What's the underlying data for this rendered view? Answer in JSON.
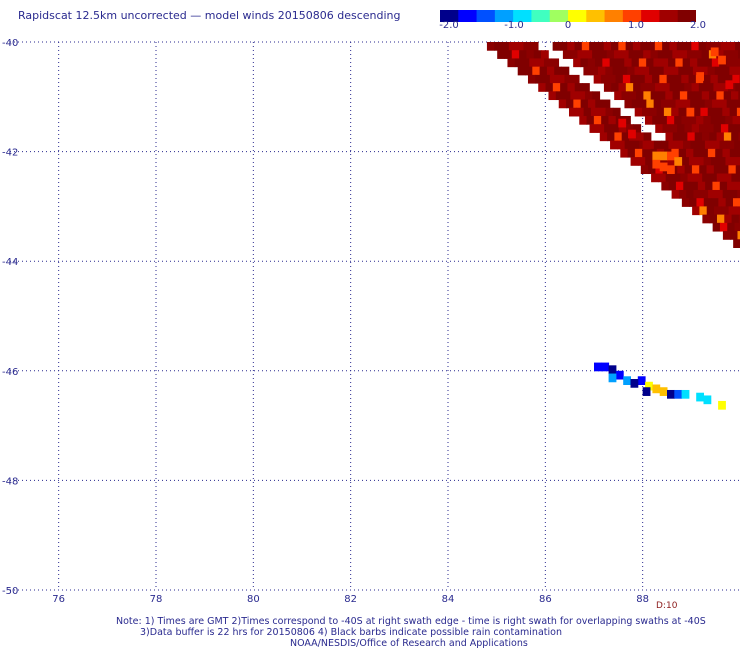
{
  "header": {
    "title": "Rapidscat 12.5km uncorrected — model winds 20150806 descending"
  },
  "colorbar": {
    "ticks": [
      "-2.0",
      "-1.0",
      "0",
      "1.0",
      "2.0"
    ],
    "colors": [
      "#00008b",
      "#0000ff",
      "#0050ff",
      "#00a0ff",
      "#00e0ff",
      "#40ffc0",
      "#a0ff60",
      "#ffff00",
      "#ffc000",
      "#ff8000",
      "#ff4000",
      "#e00000",
      "#a00000",
      "#800000"
    ]
  },
  "map": {
    "lat_labels": [
      "-40",
      "-42",
      "-44",
      "-46",
      "-48",
      "-50"
    ],
    "lon_labels": [
      "76",
      "78",
      "80",
      "82",
      "84",
      "86",
      "88"
    ]
  },
  "footer": {
    "note1": "Note: 1) Times are GMT 2)Times correspond to -40S at right swath edge - time is right swath for overlapping swaths at -40S",
    "note2": "3)Data buffer is 22 hrs for 20150806 4) Black barbs indicate possible rain contamination",
    "note3": "NOAA/NESDIS/Office of Research and Applications",
    "time_tag": "D:10"
  },
  "chart_data": {
    "type": "heatmap",
    "title": "Rapidscat 12.5km uncorrected — model winds 20150806 descending",
    "x_label": "",
    "y_label": "",
    "x_range": [
      75,
      90
    ],
    "y_range": [
      -50,
      -40
    ],
    "value_range": [
      -2.0,
      2.0
    ],
    "cell_size_deg": 0.15,
    "regions": [
      {
        "name": "",
        "lon_range": [
          85.8,
          90.0
        ],
        "lat_range": [
          -43.7,
          -40.0
        ],
        "typical_value": 1.8
      },
      {
        "name": "",
        "lon_range": [
          86.8,
          90.0
        ],
        "lat_range": [
          -46.8,
          -45.8
        ],
        "typical_value": -1.2
      }
    ],
    "cells": [
      [
        88.2,
        -42.0,
        0.9
      ],
      [
        88.35,
        -42.0,
        0.9
      ],
      [
        88.5,
        -42.0,
        1.0
      ],
      [
        88.65,
        -42.1,
        0.8
      ],
      [
        88.2,
        -42.15,
        1.1
      ],
      [
        88.35,
        -42.2,
        1.0
      ],
      [
        88.5,
        -42.25,
        1.2
      ],
      [
        89.4,
        -40.1,
        1.0
      ],
      [
        89.55,
        -40.25,
        1.2
      ],
      [
        89.1,
        -40.55,
        1.1
      ],
      [
        89.7,
        -40.7,
        1.3
      ],
      [
        88.9,
        -41.2,
        1.2
      ],
      [
        87.5,
        -41.4,
        1.4
      ],
      [
        87.7,
        -41.6,
        1.5
      ],
      [
        88.0,
        -41.8,
        1.6
      ],
      [
        87.0,
        -45.85,
        -1.8
      ],
      [
        87.15,
        -45.85,
        -1.6
      ],
      [
        87.3,
        -45.9,
        -1.9
      ],
      [
        87.45,
        -46.0,
        -1.7
      ],
      [
        87.3,
        -46.05,
        -1.2
      ],
      [
        87.6,
        -46.1,
        -1.0
      ],
      [
        87.9,
        -46.1,
        -1.8
      ],
      [
        88.05,
        -46.2,
        0.3
      ],
      [
        88.2,
        -46.25,
        0.35
      ],
      [
        88.35,
        -46.3,
        0.35
      ],
      [
        88.5,
        -46.35,
        -1.9
      ],
      [
        88.65,
        -46.35,
        -1.4
      ],
      [
        88.8,
        -46.35,
        -0.7
      ],
      [
        89.1,
        -46.4,
        -0.8
      ],
      [
        89.25,
        -46.45,
        -0.7
      ],
      [
        89.55,
        -46.55,
        0.2
      ],
      [
        88.0,
        -46.3,
        -1.9
      ],
      [
        87.75,
        -46.15,
        -1.9
      ]
    ]
  }
}
